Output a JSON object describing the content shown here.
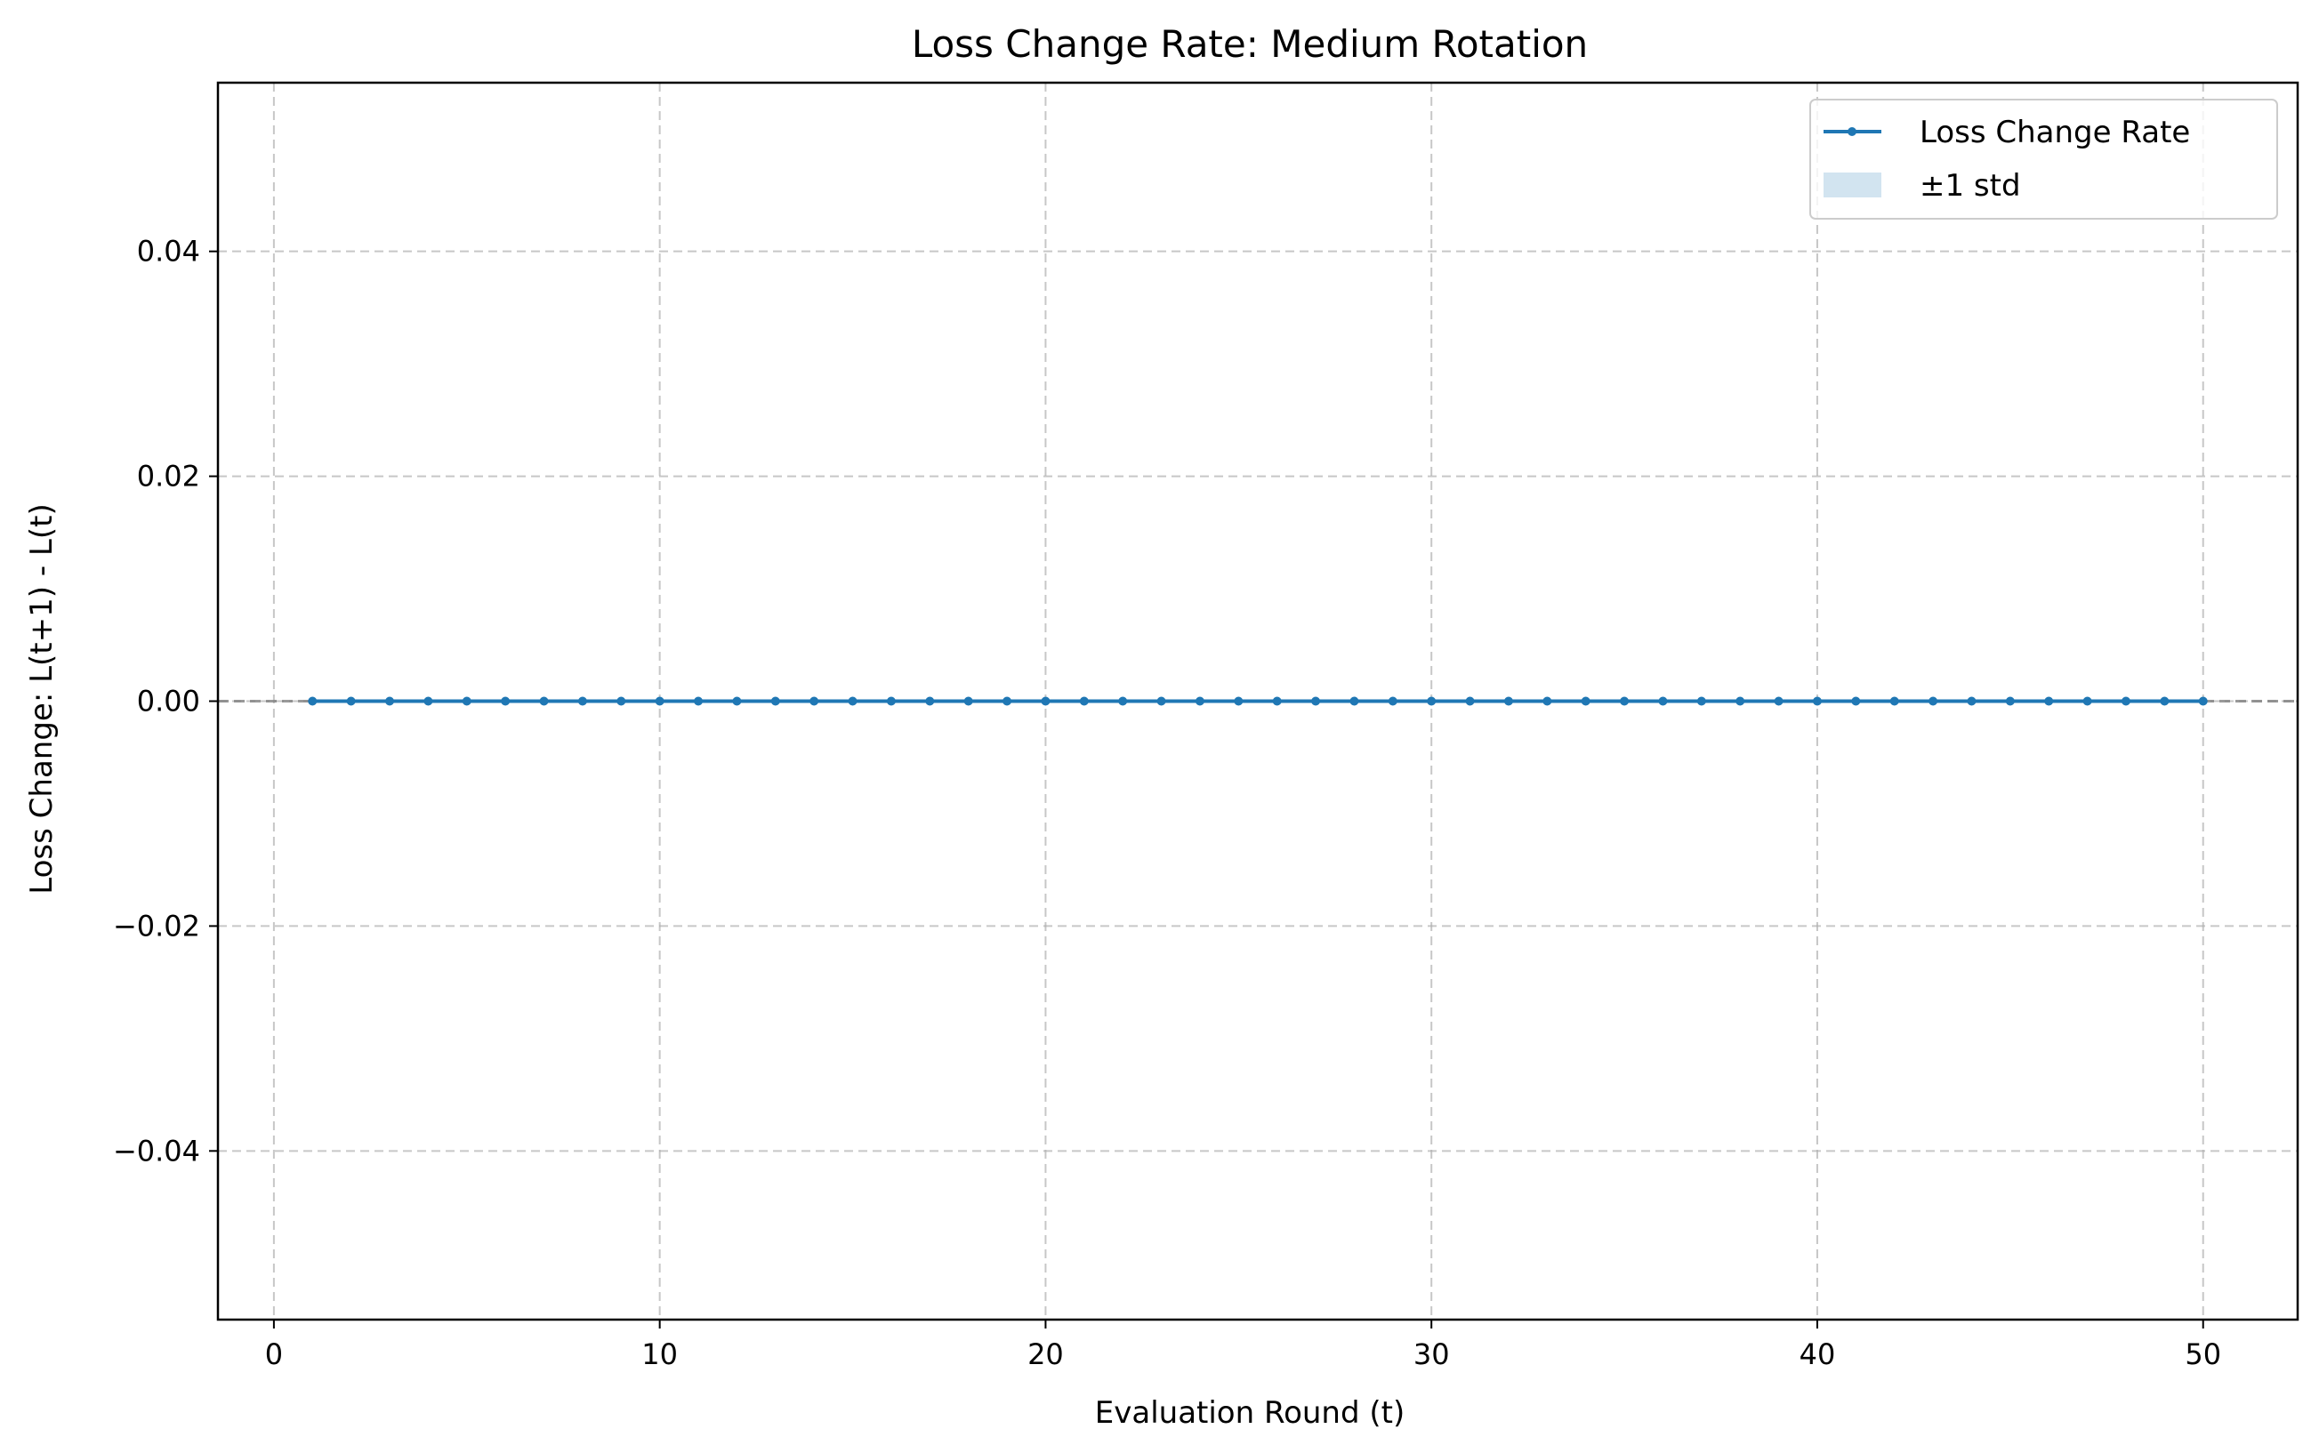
{
  "chart_data": {
    "type": "line",
    "title": "Loss Change Rate: Medium Rotation",
    "xlabel": "Evaluation Round (t)",
    "ylabel": "Loss Change: L(t+1) - L(t)",
    "xlim": [
      -1.45,
      52.45
    ],
    "ylim": [
      -0.055,
      0.055
    ],
    "xticks": [
      0,
      10,
      20,
      30,
      40,
      50
    ],
    "xtick_labels": [
      "0",
      "10",
      "20",
      "30",
      "40",
      "50"
    ],
    "yticks": [
      -0.04,
      -0.02,
      0.0,
      0.02,
      0.04
    ],
    "ytick_labels": [
      "−0.04",
      "−0.02",
      "0.00",
      "0.02",
      "0.04"
    ],
    "grid": true,
    "grid_style": "dashed",
    "reference_line_y": 0,
    "legend_position": "top-right",
    "series": [
      {
        "name": "Loss Change Rate",
        "color": "#1f77b4",
        "marker": "dot",
        "x": [
          1,
          2,
          3,
          4,
          5,
          6,
          7,
          8,
          9,
          10,
          11,
          12,
          13,
          14,
          15,
          16,
          17,
          18,
          19,
          20,
          21,
          22,
          23,
          24,
          25,
          26,
          27,
          28,
          29,
          30,
          31,
          32,
          33,
          34,
          35,
          36,
          37,
          38,
          39,
          40,
          41,
          42,
          43,
          44,
          45,
          46,
          47,
          48,
          49,
          50
        ],
        "y": [
          0,
          0,
          0,
          0,
          0,
          0,
          0,
          0,
          0,
          0,
          0,
          0,
          0,
          0,
          0,
          0,
          0,
          0,
          0,
          0,
          0,
          0,
          0,
          0,
          0,
          0,
          0,
          0,
          0,
          0,
          0,
          0,
          0,
          0,
          0,
          0,
          0,
          0,
          0,
          0,
          0,
          0,
          0,
          0,
          0,
          0,
          0,
          0,
          0,
          0
        ],
        "std": [
          0,
          0,
          0,
          0,
          0,
          0,
          0,
          0,
          0,
          0,
          0,
          0,
          0,
          0,
          0,
          0,
          0,
          0,
          0,
          0,
          0,
          0,
          0,
          0,
          0,
          0,
          0,
          0,
          0,
          0,
          0,
          0,
          0,
          0,
          0,
          0,
          0,
          0,
          0,
          0,
          0,
          0,
          0,
          0,
          0,
          0,
          0,
          0,
          0,
          0
        ]
      }
    ],
    "band": {
      "name": "±1 std",
      "color": "#1f77b4"
    }
  }
}
